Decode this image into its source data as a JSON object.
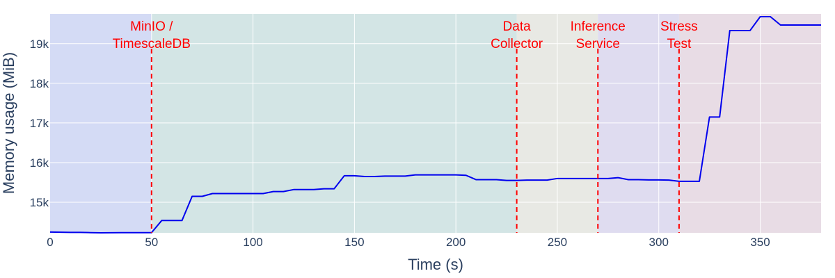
{
  "chart_data": {
    "type": "line",
    "xlabel": "Time (s)",
    "ylabel": "Memory usage (MiB)",
    "xlim": [
      0,
      380
    ],
    "ylim": [
      14230,
      19750
    ],
    "grid": true,
    "legend": "none",
    "xticks": [
      {
        "value": 0,
        "label": "0"
      },
      {
        "value": 50,
        "label": "50"
      },
      {
        "value": 100,
        "label": "100"
      },
      {
        "value": 150,
        "label": "150"
      },
      {
        "value": 200,
        "label": "200"
      },
      {
        "value": 250,
        "label": "250"
      },
      {
        "value": 300,
        "label": "300"
      },
      {
        "value": 350,
        "label": "350"
      }
    ],
    "yticks": [
      {
        "value": 15000,
        "label": "15k"
      },
      {
        "value": 16000,
        "label": "16k"
      },
      {
        "value": 17000,
        "label": "17k"
      },
      {
        "value": 18000,
        "label": "18k"
      },
      {
        "value": 19000,
        "label": "19k"
      }
    ],
    "line_color": "#0000ee",
    "marker_color": "#ff0000",
    "regions": [
      {
        "x0": 0,
        "x1": 50,
        "color": "#d4dbf5"
      },
      {
        "x0": 50,
        "x1": 230,
        "color": "#d3e5e5"
      },
      {
        "x0": 230,
        "x1": 270,
        "color": "#e8e9e4"
      },
      {
        "x0": 270,
        "x1": 310,
        "color": "#dfdcf0"
      },
      {
        "x0": 310,
        "x1": 380,
        "color": "#e8dce5"
      }
    ],
    "markers": [
      {
        "x": 50,
        "label_lines": [
          "MinIO /",
          "TimescaleDB"
        ]
      },
      {
        "x": 230,
        "label_lines": [
          "Data",
          "Collector"
        ]
      },
      {
        "x": 270,
        "label_lines": [
          "Inference",
          "Service"
        ]
      },
      {
        "x": 310,
        "label_lines": [
          "Stress",
          "Test"
        ]
      }
    ],
    "series": [
      {
        "x": [
          0,
          5,
          10,
          15,
          20,
          25,
          30,
          35,
          40,
          45,
          50,
          55,
          60,
          65,
          70,
          75,
          80,
          85,
          90,
          95,
          100,
          105,
          110,
          115,
          120,
          125,
          130,
          135,
          140,
          145,
          150,
          155,
          160,
          165,
          170,
          175,
          180,
          185,
          190,
          195,
          200,
          205,
          210,
          215,
          220,
          225,
          230,
          235,
          240,
          245,
          250,
          255,
          260,
          265,
          270,
          275,
          280,
          285,
          290,
          295,
          300,
          305,
          310,
          315,
          320,
          325,
          330,
          335,
          340,
          345,
          350,
          355,
          360,
          365,
          370,
          375,
          380
        ],
        "y": [
          14250,
          14245,
          14240,
          14240,
          14235,
          14230,
          14232,
          14235,
          14235,
          14235,
          14235,
          14540,
          14540,
          14540,
          15150,
          15150,
          15220,
          15220,
          15220,
          15220,
          15220,
          15220,
          15270,
          15270,
          15320,
          15320,
          15320,
          15340,
          15340,
          15670,
          15670,
          15650,
          15650,
          15660,
          15660,
          15660,
          15690,
          15690,
          15690,
          15690,
          15690,
          15680,
          15570,
          15570,
          15570,
          15550,
          15550,
          15560,
          15560,
          15560,
          15600,
          15600,
          15600,
          15600,
          15600,
          15600,
          15620,
          15570,
          15570,
          15565,
          15565,
          15560,
          15530,
          15530,
          15530,
          17150,
          17150,
          19330,
          19330,
          19330,
          19680,
          19680,
          19470,
          19470,
          19470,
          19470,
          19470
        ]
      }
    ]
  }
}
